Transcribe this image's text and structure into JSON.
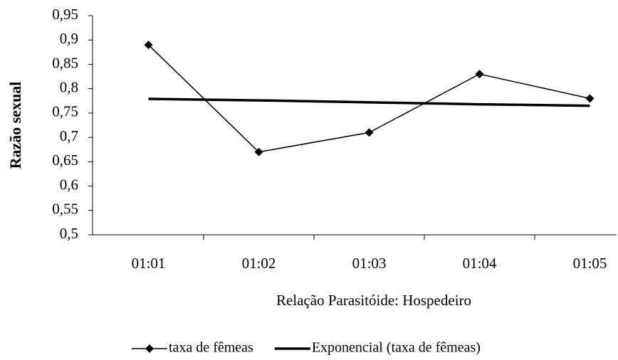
{
  "chart_data": {
    "type": "line",
    "x_label": "Relação Parasitóide: Hospedeiro",
    "y_label": "Razão sexual",
    "categories": [
      "01:01",
      "01:02",
      "01:03",
      "01:04",
      "01:05"
    ],
    "series": [
      {
        "name": "taxa de fêmeas",
        "color": "#000000",
        "marker": "diamond",
        "values": [
          0.89,
          0.67,
          0.71,
          0.83,
          0.78
        ]
      },
      {
        "name": "Exponencial (taxa de fêmeas)",
        "color": "#000000",
        "marker": "none",
        "values": [
          0.779,
          0.776,
          0.772,
          0.768,
          0.765
        ]
      }
    ],
    "ylim": [
      0.5,
      0.95
    ],
    "yticks": [
      {
        "value": 0.5,
        "label": "0,5"
      },
      {
        "value": 0.55,
        "label": "0,55"
      },
      {
        "value": 0.6,
        "label": "0,6"
      },
      {
        "value": 0.65,
        "label": "0,65"
      },
      {
        "value": 0.7,
        "label": "0,7"
      },
      {
        "value": 0.75,
        "label": "0,75"
      },
      {
        "value": 0.8,
        "label": "0,8"
      },
      {
        "value": 0.85,
        "label": "0,85"
      },
      {
        "value": 0.9,
        "label": "0,9"
      },
      {
        "value": 0.95,
        "label": "0,95"
      }
    ],
    "legend": "bottom"
  }
}
